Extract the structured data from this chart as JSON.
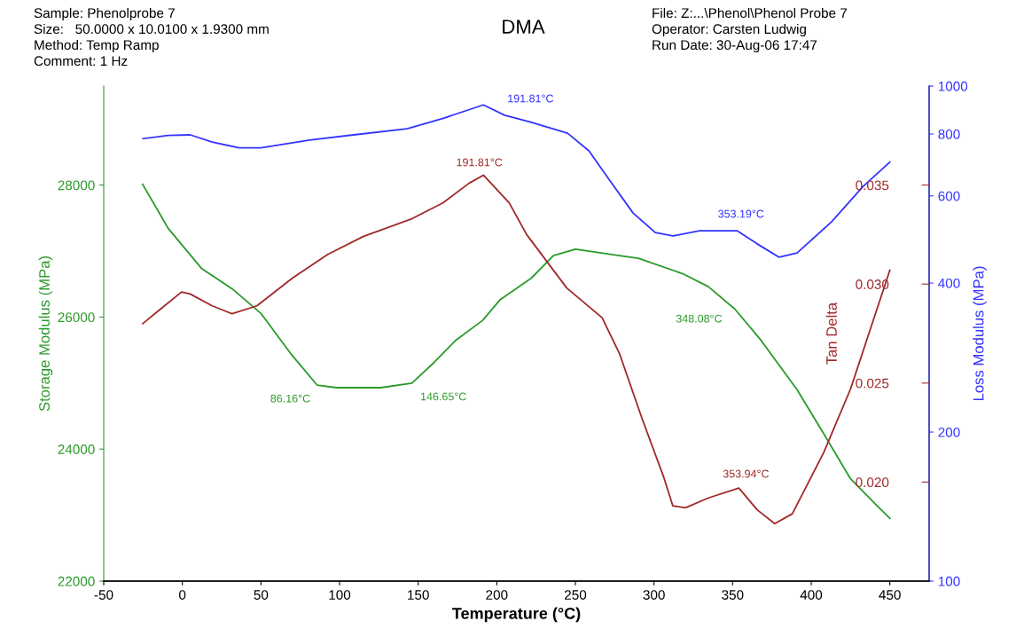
{
  "chart_data": {
    "type": "line",
    "title": "DMA",
    "xlabel": "Temperature (°C)",
    "ylabel": "Storage Modulus (MPa)",
    "y2label": "Loss Modulus (MPa)",
    "y3label": "Tan Delta",
    "annotations": [
      "Sample: Phenolprobe 7",
      "Size:   50.0000 x 10.0100 x 1.9300 mm",
      "Method: Temp Ramp",
      "Comment: 1 Hz",
      "File: Z:...\\Phenol\\Phenol Probe 7",
      "Operator: Carsten Ludwig",
      "Run Date: 30-Aug-06 17:47",
      "191.81°C",
      "353.19°C",
      "191.81°C",
      "353.94°C",
      {
        "text": "86.16°C",
        "x": 86.16,
        "y": 24970
      },
      {
        "text": "146.65°C",
        "x": 146.65,
        "y": 25000
      },
      {
        "text": "348.08°C",
        "x": 348.08,
        "y": 26180
      }
    ],
    "xlim": [
      -50,
      475
    ],
    "xticks": [
      -50,
      0,
      50,
      100,
      150,
      200,
      250,
      300,
      350,
      400,
      450
    ],
    "ylim": [
      22000,
      29500
    ],
    "yticks": [
      22000,
      24000,
      26000,
      28000
    ],
    "log": "y2",
    "y2lim": [
      100,
      1000
    ],
    "y2ticks": [
      100,
      200,
      400,
      600,
      800,
      1000
    ],
    "y3lim": [
      0.015,
      0.04
    ],
    "y3ticks": [
      {
        "value": 0.02,
        "label": "0.020"
      },
      {
        "value": 0.025,
        "label": "0.025"
      },
      {
        "value": 0.03,
        "label": "0.030"
      },
      {
        "value": 0.035,
        "label": "0.035"
      }
    ],
    "grid": false,
    "legend": false,
    "series": [
      {
        "color": "#2a9a2a",
        "axis": "y",
        "x": [
          -25.2,
          -8.9,
          12.5,
          31.6,
          50.2,
          68.8,
          85.7,
          98.1,
          126.2,
          146,
          160,
          174,
          191,
          202,
          222,
          236,
          250,
          278,
          290,
          318,
          334.6,
          351.5,
          368,
          391,
          408,
          425,
          441.5,
          450
        ],
        "values": [
          28010,
          27340,
          26730,
          26430,
          26050,
          25450,
          24970,
          24930,
          24930,
          25000,
          25310,
          25650,
          25950,
          26260,
          26590,
          26930,
          27030,
          26930,
          26890,
          26660,
          26460,
          26120,
          25650,
          24900,
          24230,
          23550,
          23150,
          22950
        ]
      },
      {
        "color": "#3333ff",
        "axis": "y2",
        "x": [
          -25,
          -9,
          5,
          19,
          36,
          50,
          81,
          109,
          143,
          166,
          191.5,
          205,
          222,
          245,
          258.6,
          272.6,
          286.7,
          300.8,
          312,
          329,
          353,
          365.6,
          379.6,
          391,
          413,
          433,
          450
        ],
        "values": [
          783,
          795,
          797,
          771,
          750,
          750,
          778,
          797,
          820,
          861,
          916,
          873,
          845,
          803,
          740,
          640,
          554,
          506,
          498,
          510,
          510,
          480,
          451,
          460,
          532,
          627,
          702
        ]
      },
      {
        "color": "#a02828",
        "axis": "y3",
        "x": [
          -25.2,
          -14.5,
          -0.5,
          5,
          19,
          31.6,
          47.4,
          70,
          92.5,
          115,
          146,
          165.7,
          182.5,
          191.5,
          207.9,
          219,
          244.5,
          267,
          278,
          292,
          306.4,
          312,
          320,
          334.6,
          354,
          365.6,
          376.8,
          388,
          408,
          425,
          450
        ],
        "values": [
          0.028,
          0.0287,
          0.0296,
          0.0295,
          0.0289,
          0.0285,
          0.0289,
          0.0303,
          0.0315,
          0.0324,
          0.0333,
          0.0341,
          0.0351,
          0.0355,
          0.0341,
          0.0325,
          0.0298,
          0.0283,
          0.0265,
          0.0233,
          0.0202,
          0.0188,
          0.0187,
          0.0192,
          0.0197,
          0.0186,
          0.0179,
          0.0184,
          0.0215,
          0.0247,
          0.0307
        ]
      }
    ]
  }
}
